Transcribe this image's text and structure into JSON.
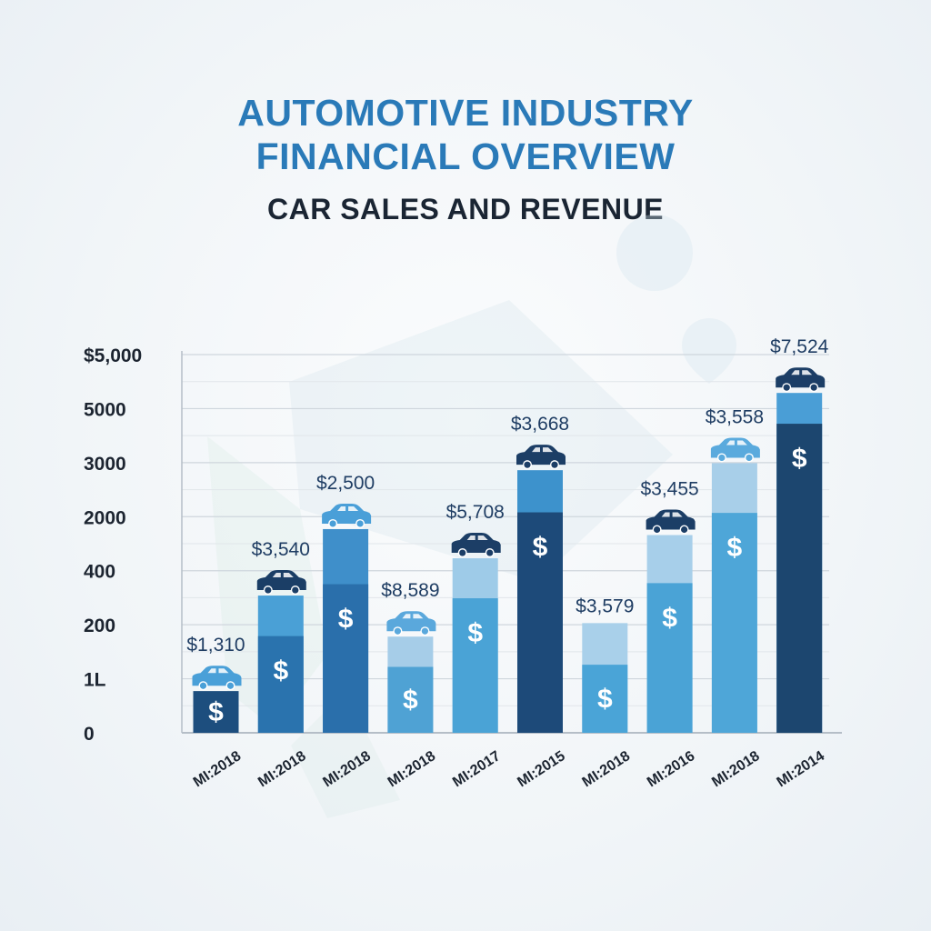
{
  "header": {
    "title_line1": "AUTOMOTIVE INDUSTRY",
    "title_line2": "FINANCIAL OVERVIEW",
    "subtitle": "CAR SALES AND REVENUE"
  },
  "chart_data": {
    "type": "bar",
    "y_tick_labels": [
      "$5,000",
      "5000",
      "3000",
      "2000",
      "400",
      "200",
      "1L",
      "0"
    ],
    "categories": [
      "MI:2018",
      "MI:2018",
      "MI:2018",
      "MI:2018",
      "MI:2017",
      "MI:2015",
      "MI:2018",
      "MI:2016",
      "MI:2018",
      "MI:2014"
    ],
    "value_labels": [
      "$1,310",
      "$3,540",
      "$2,500",
      "$8,589",
      "$5,708",
      "$3,668",
      "$3,579",
      "$3,455",
      "$3,558",
      "$7,524"
    ],
    "bar_total_levels": [
      0.77,
      2.54,
      3.77,
      1.78,
      3.23,
      4.86,
      2.03,
      3.66,
      4.99,
      6.29
    ],
    "bar_base_levels": [
      0.77,
      1.79,
      2.75,
      1.22,
      2.49,
      4.08,
      1.26,
      2.77,
      4.07,
      5.72
    ],
    "grid": true,
    "bar_base_colors": [
      "#1d4e7e",
      "#2a73ae",
      "#2a6fab",
      "#4fa2d4",
      "#4aa3d6",
      "#1d4a79",
      "#4aa4d7",
      "#4aa3d6",
      "#4ea6d8",
      "#1c466f"
    ],
    "bar_top_colors": [
      "#1d4e7e",
      "#4aa0d6",
      "#3f8fca",
      "#a6cde8",
      "#9ecbe8",
      "#3d92cc",
      "#a9d0ea",
      "#a7cfea",
      "#a8cfe9",
      "#4a9ed6"
    ],
    "car_icon_colors": [
      "#4aa0d8",
      "#1b3e66",
      "#4a9fd8",
      "#5aa8dc",
      "#1c3e66",
      "#1c3e66",
      "",
      "#1c3e66",
      "#5aaadd",
      "#1c3e66"
    ],
    "icon": "dollar-sign-icon",
    "dollar_symbol": "$"
  }
}
